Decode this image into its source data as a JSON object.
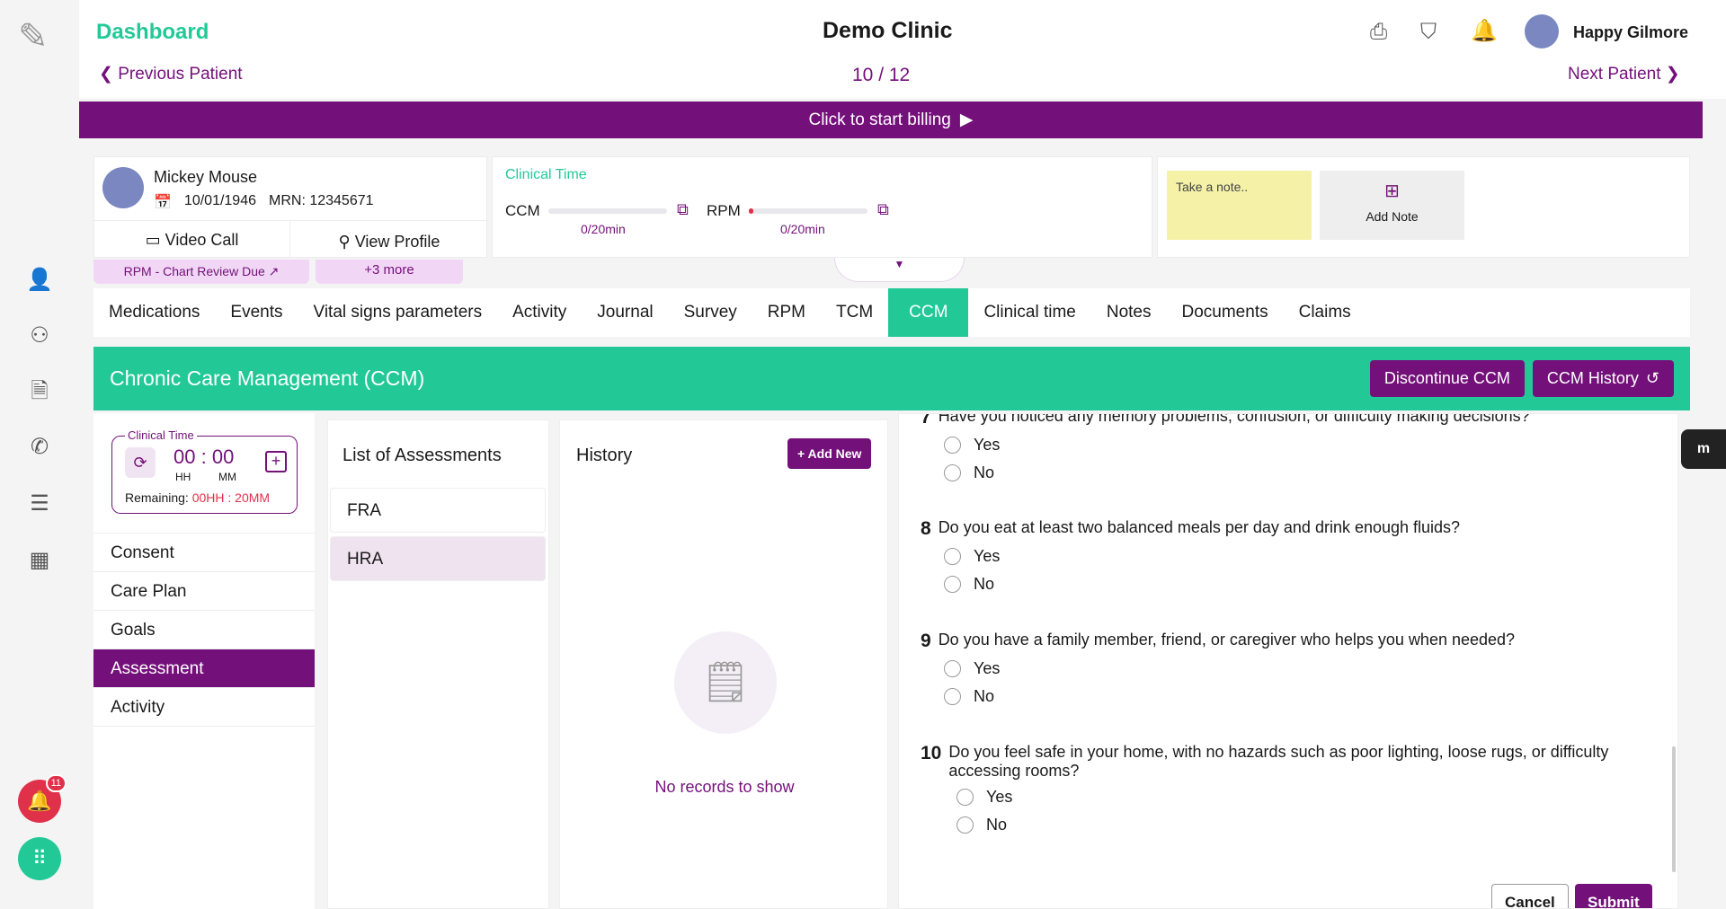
{
  "header": {
    "title": "Dashboard",
    "clinic": "Demo Clinic",
    "user": "Happy Gilmore",
    "prev": "Previous Patient",
    "next": "Next Patient",
    "position": "10 / 12"
  },
  "billing": {
    "label": "Click to start billing"
  },
  "patient": {
    "name": "Mickey Mouse",
    "dob": "10/01/1946",
    "mrn": "MRN: 12345671",
    "video_call": "Video Call",
    "view_profile": "View Profile",
    "tag": "RPM - Chart Review Due",
    "more": "+3 more"
  },
  "clinical_time": {
    "title": "Clinical Time",
    "ccm_label": "CCM",
    "ccm_value": "0/20min",
    "ccm_progress": 0,
    "rpm_label": "RPM",
    "rpm_value": "0/20min",
    "rpm_progress": 0.02
  },
  "notes": {
    "placeholder": "Take a note..",
    "add": "Add Note"
  },
  "tabs": [
    "Medications",
    "Events",
    "Vital signs parameters",
    "Activity",
    "Journal",
    "Survey",
    "RPM",
    "TCM",
    "CCM",
    "Clinical time",
    "Notes",
    "Documents",
    "Claims"
  ],
  "active_tab": "CCM",
  "ccm": {
    "title": "Chronic Care Management (CCM)",
    "discontinue": "Discontinue CCM",
    "history": "CCM History"
  },
  "timer": {
    "label": "Clinical Time",
    "hh": "00",
    "mm": "00",
    "hh_label": "HH",
    "mm_label": "MM",
    "remaining_label": "Remaining:",
    "remaining": "00HH : 20MM"
  },
  "nav": [
    "Consent",
    "Care Plan",
    "Goals",
    "Assessment",
    "Activity"
  ],
  "assessments": {
    "title": "List of Assessments",
    "items": [
      "FRA",
      "HRA"
    ]
  },
  "history": {
    "title": "History",
    "add": "+ Add New",
    "empty": "No records to show"
  },
  "questions": [
    {
      "num": "7",
      "text": "Have you noticed any memory problems, confusion, or difficulty making decisions?",
      "options": [
        "Yes",
        "No"
      ]
    },
    {
      "num": "8",
      "text": "Do you eat at least two balanced meals per day and drink enough fluids?",
      "options": [
        "Yes",
        "No"
      ]
    },
    {
      "num": "9",
      "text": "Do you have a family member, friend, or caregiver who helps you when needed?",
      "options": [
        "Yes",
        "No"
      ]
    },
    {
      "num": "10",
      "text": "Do you feel safe in your home, with no hazards such as poor lighting, loose rugs, or difficulty accessing rooms?",
      "options": [
        "Yes",
        "No"
      ]
    }
  ],
  "form": {
    "cancel": "Cancel",
    "submit": "Submit"
  },
  "notification_count": "11",
  "colors": {
    "brand": "#74107a",
    "accent": "#22c997",
    "danger": "#e0314b"
  }
}
